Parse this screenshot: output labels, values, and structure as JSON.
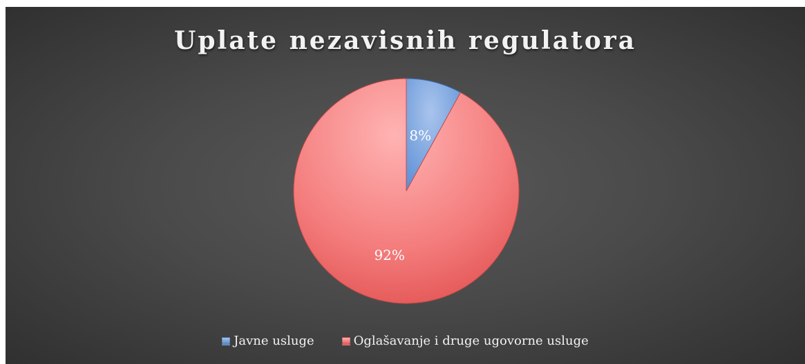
{
  "chart_data": {
    "type": "pie",
    "title": "Uplate nezavisnih regulatora",
    "categories": [
      "Javne usluge",
      "Oglašavanje i druge ugovorne usluge"
    ],
    "values": [
      8,
      92
    ],
    "data_labels": [
      "8%",
      "92%"
    ],
    "colors": [
      "#4f81bd",
      "#c0504d"
    ],
    "legend_position": "bottom"
  }
}
